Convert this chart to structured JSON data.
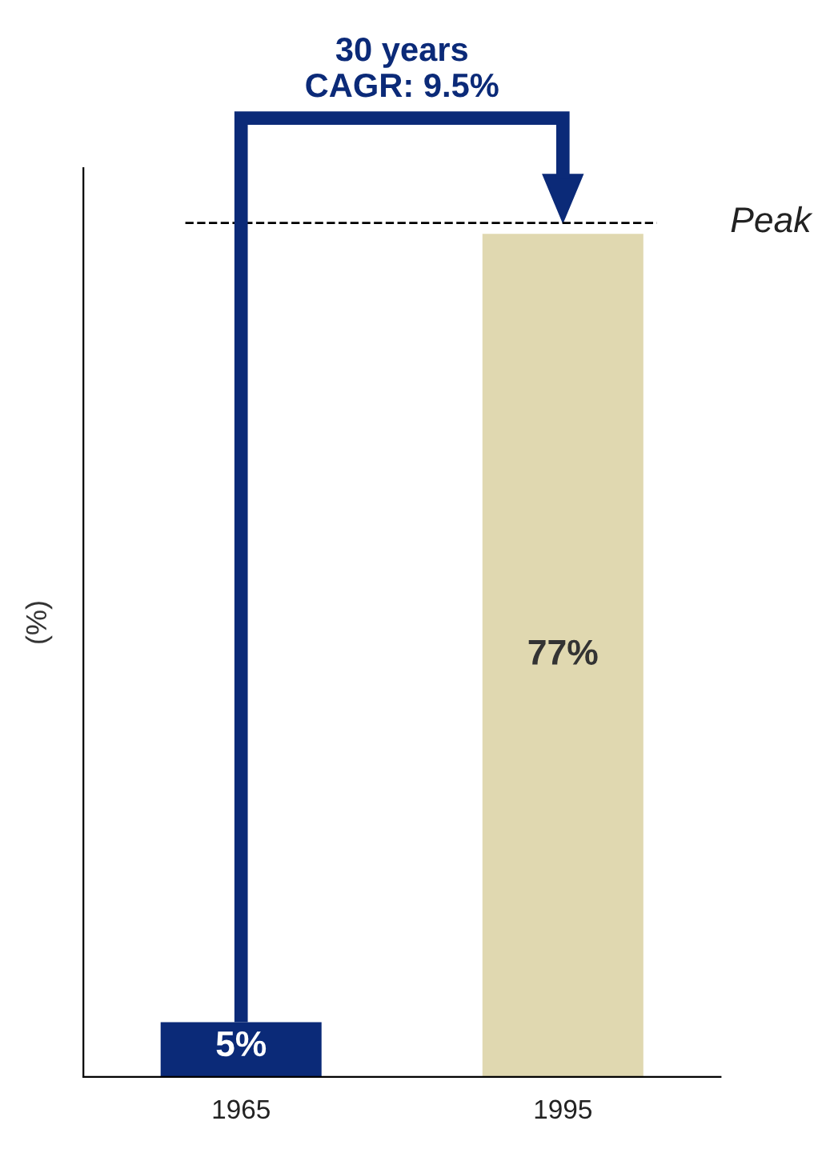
{
  "chart_data": {
    "type": "bar",
    "categories": [
      "1965",
      "1995"
    ],
    "values": [
      5,
      77
    ],
    "colors": [
      "#0b2a78",
      "#e0d8b0"
    ],
    "ylabel": "(%)",
    "tick_labels": "x",
    "value_labels": [
      "5%",
      "77%"
    ],
    "ref_lines": [
      {
        "axis": "y",
        "value": 78,
        "label": "Peak",
        "line_style": "dashed",
        "color": "#000000"
      }
    ],
    "annotations": [
      "30 years\nCAGR: 9.5%"
    ],
    "grid": false
  }
}
